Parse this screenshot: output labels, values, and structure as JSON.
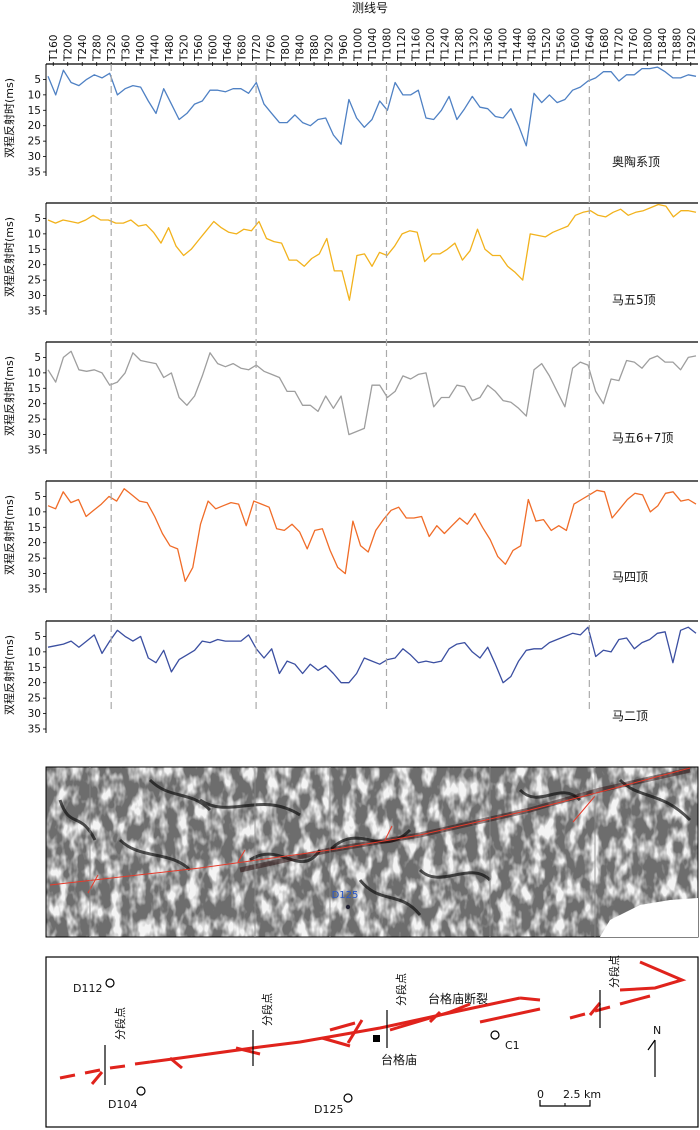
{
  "header": {
    "title": "测线号"
  },
  "x_labels": [
    "T160",
    "T200",
    "T240",
    "T280",
    "T320",
    "T360",
    "T400",
    "T440",
    "T480",
    "T520",
    "T560",
    "T600",
    "T640",
    "T680",
    "T720",
    "T760",
    "T800",
    "T840",
    "T880",
    "T920",
    "T960",
    "T1000",
    "T1040",
    "T1080",
    "T1120",
    "T1160",
    "T1200",
    "T1240",
    "T1280",
    "T1320",
    "T1360",
    "T1400",
    "T1440",
    "T1480",
    "T1520",
    "T1560",
    "T1600",
    "T1640",
    "T1680",
    "T1720",
    "T1760",
    "T1800",
    "T1840",
    "T1880",
    "T1920"
  ],
  "y_axis_label": "双程反射时(ms)",
  "y_ticks": [
    5,
    10,
    15,
    20,
    25,
    30,
    35
  ],
  "segment_points": [
    "T320",
    "T720",
    "T1080",
    "T1640"
  ],
  "chart_data": [
    {
      "type": "line",
      "name": "奥陶系顶",
      "color": "#4f81c4",
      "y_axis_label": "双程反射时(ms)",
      "ylim": [
        0,
        35
      ],
      "inverted": true,
      "values": [
        4,
        10,
        2,
        6,
        7,
        5,
        3.5,
        4.5,
        3,
        10,
        8,
        7,
        7.5,
        12,
        16,
        8,
        13,
        18,
        16,
        13,
        12,
        8.5,
        8.5,
        9,
        8,
        8,
        9.5,
        6,
        13,
        16,
        19,
        19,
        16.5,
        19,
        20,
        18,
        17.5,
        23,
        26,
        11.5,
        17.5,
        20.5,
        18,
        12,
        15,
        6,
        10,
        10,
        8.5,
        17.5,
        18,
        15,
        10.5,
        18,
        14.5,
        10.5,
        14,
        14.5,
        17,
        17.5,
        14.5,
        20,
        26.5,
        9.5,
        12.5,
        10,
        12.5,
        11.5,
        8.5,
        7.5,
        5.5,
        4.5,
        2.5,
        2.5,
        5.5,
        3.5,
        3.5,
        1.5,
        1.5,
        1,
        2.5,
        4.5,
        4.5,
        3.5,
        4
      ]
    },
    {
      "type": "line",
      "name": "马五5顶",
      "color": "#f2b21c",
      "y_axis_label": "双程反射时(ms)",
      "ylim": [
        0,
        35
      ],
      "inverted": true,
      "values": [
        5.5,
        6.5,
        5.5,
        6,
        6.5,
        5.5,
        4,
        5.5,
        5.5,
        6.5,
        6.5,
        5.5,
        7.5,
        7,
        9.5,
        13,
        8,
        14,
        17,
        15,
        12,
        9,
        6,
        8,
        9.5,
        10,
        8.5,
        9,
        6,
        11.5,
        12.5,
        13,
        18.5,
        18.5,
        20.5,
        18,
        16.5,
        11.5,
        22,
        22,
        31.5,
        17,
        16.5,
        20.5,
        16,
        17,
        14,
        10,
        9,
        9.5,
        19,
        16.5,
        16.5,
        15,
        13,
        18.5,
        15.5,
        8.5,
        15,
        17,
        17,
        20.5,
        22.5,
        25,
        10,
        10.5,
        11,
        9.5,
        8.5,
        7.5,
        4,
        3,
        2.5,
        4,
        4.5,
        3,
        2,
        4,
        3,
        2.5,
        1.5,
        0.5,
        1,
        4.5,
        2.5,
        2.5,
        3
      ]
    },
    {
      "type": "line",
      "name": "马五6+7顶",
      "color": "#9e9e9e",
      "y_axis_label": "双程反射时(ms)",
      "ylim": [
        0,
        35
      ],
      "inverted": true,
      "values": [
        9,
        13,
        5,
        3,
        9,
        9.5,
        9,
        10,
        14,
        13,
        10,
        3.5,
        6,
        6.5,
        7,
        11.5,
        10,
        18,
        20.5,
        17.5,
        11,
        3.5,
        7,
        8,
        7,
        8.5,
        9,
        7.5,
        9.5,
        10.5,
        11.5,
        16,
        16,
        20.5,
        20.5,
        22.5,
        17.5,
        21.5,
        17.5,
        30,
        29,
        28,
        14,
        14,
        18,
        16,
        11,
        12,
        10.5,
        10,
        21,
        18,
        18,
        14,
        14.5,
        19,
        18,
        14,
        16,
        19,
        19.5,
        21.5,
        24,
        9,
        7,
        11,
        16,
        21,
        8.5,
        6.5,
        7.5,
        16,
        20,
        12,
        12.5,
        6,
        6.5,
        8.5,
        5.5,
        4.5,
        6.5,
        6.5,
        9,
        5,
        4.5
      ]
    },
    {
      "type": "line",
      "name": "马四顶",
      "color": "#f06c28",
      "y_axis_label": "双程反射时(ms)",
      "ylim": [
        0,
        35
      ],
      "inverted": true,
      "values": [
        8,
        9,
        3.5,
        7,
        6,
        11.5,
        9.5,
        7.5,
        5,
        6.5,
        2.5,
        4.5,
        6.5,
        7,
        11.5,
        17,
        21,
        22,
        32.5,
        28,
        14,
        6.5,
        9,
        8,
        7,
        7.5,
        14.5,
        6.5,
        7.5,
        8.5,
        15.5,
        16,
        14,
        16.5,
        22,
        16,
        15.5,
        22.5,
        28,
        30,
        13,
        21,
        23,
        16,
        12.5,
        9.5,
        8.5,
        12,
        12,
        11.5,
        18,
        14.5,
        17,
        14.5,
        12,
        14,
        10.5,
        15,
        19,
        24.5,
        27,
        22.5,
        21,
        6,
        13,
        12.5,
        16,
        14.5,
        16,
        7.5,
        6,
        4.5,
        3,
        3.5,
        12,
        9,
        6,
        4,
        4.5,
        10,
        8,
        4,
        3.5,
        6.5,
        6,
        7.5
      ]
    },
    {
      "type": "line",
      "name": "马二顶",
      "color": "#3b4fa1",
      "y_axis_label": "双程反射时(ms)",
      "ylim": [
        0,
        35
      ],
      "inverted": true,
      "values": [
        8.5,
        8,
        7.5,
        6.5,
        8.5,
        6.5,
        4.5,
        10.5,
        6.5,
        3,
        5,
        6.5,
        5,
        12,
        13.5,
        9.5,
        16.5,
        12.5,
        11,
        9.5,
        6.5,
        7,
        6,
        6.5,
        6.5,
        6.5,
        4.5,
        9,
        12,
        9,
        17,
        13,
        14,
        17,
        14,
        16,
        14.5,
        17,
        20,
        20,
        17,
        12,
        13,
        14,
        12.5,
        12,
        9,
        11,
        13.5,
        13,
        13.5,
        13,
        9,
        7.5,
        7,
        10,
        12,
        8.5,
        14,
        20,
        18,
        13,
        9.5,
        9,
        9,
        7,
        6,
        5,
        4,
        4.5,
        2,
        11.5,
        9.5,
        10,
        6,
        5.5,
        9,
        7,
        6,
        4,
        3.5,
        13.5,
        3,
        2,
        4
      ]
    }
  ],
  "seismic": {
    "well_label": "D125"
  },
  "map": {
    "wells": [
      "D112",
      "D104",
      "D125",
      "C1"
    ],
    "fault_name": "台格庙断裂",
    "segment_label": "分段点",
    "place_name": "台格庙",
    "north": "N",
    "scale_start": "0",
    "scale_end": "2.5 km"
  }
}
